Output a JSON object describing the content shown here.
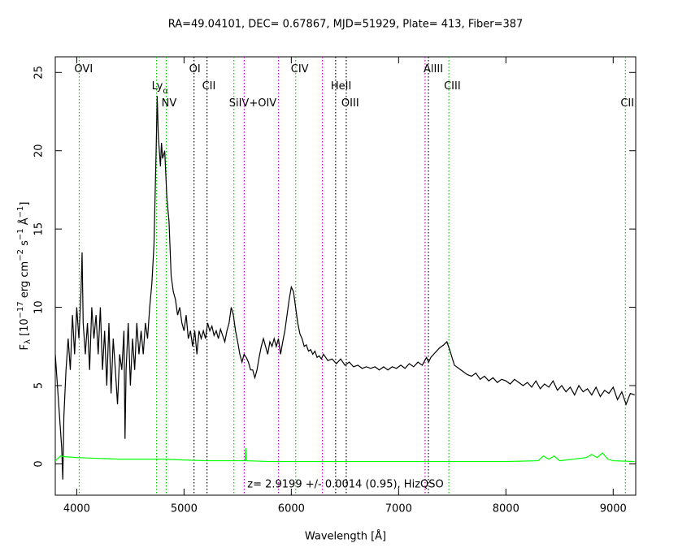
{
  "chart_data": {
    "type": "line",
    "title": "RA=49.04101, DEC= 0.67867, MJD=51929, Plate= 413, Fiber=387",
    "xlabel": "Wavelength [Å]",
    "ylabel": [
      [
        "F",
        "base"
      ],
      [
        "λ",
        "sub"
      ],
      [
        " [10",
        "base"
      ],
      [
        "−17",
        "sup"
      ],
      [
        " erg cm",
        "base"
      ],
      [
        "−2",
        "sup"
      ],
      [
        " s",
        "base"
      ],
      [
        "−1",
        "sup"
      ],
      [
        " Å",
        "base"
      ],
      [
        "−1",
        "sup"
      ],
      [
        "]",
        "base"
      ]
    ],
    "annotation": "z= 2.9199 +/- 0.0014 (0.95), HizQSO",
    "xlim": [
      3800,
      9210
    ],
    "ylim": [
      -2,
      26
    ],
    "xticks": [
      4000,
      5000,
      6000,
      7000,
      8000,
      9000
    ],
    "yticks": [
      0,
      5,
      10,
      15,
      20,
      25
    ],
    "series": [
      {
        "color": "#000000",
        "x": [
          3800,
          3820,
          3840,
          3860,
          3870,
          3880,
          3900,
          3920,
          3940,
          3960,
          3980,
          4000,
          4020,
          4040,
          4050,
          4060,
          4080,
          4100,
          4120,
          4140,
          4160,
          4180,
          4200,
          4220,
          4240,
          4260,
          4280,
          4300,
          4320,
          4340,
          4360,
          4380,
          4400,
          4420,
          4440,
          4450,
          4460,
          4480,
          4500,
          4520,
          4540,
          4560,
          4580,
          4600,
          4620,
          4640,
          4660,
          4680,
          4700,
          4720,
          4740,
          4750,
          4760,
          4780,
          4790,
          4800,
          4820,
          4840,
          4860,
          4880,
          4900,
          4920,
          4940,
          4960,
          4980,
          5000,
          5020,
          5040,
          5060,
          5080,
          5100,
          5120,
          5140,
          5160,
          5180,
          5200,
          5220,
          5240,
          5260,
          5280,
          5300,
          5320,
          5340,
          5360,
          5380,
          5400,
          5420,
          5440,
          5460,
          5480,
          5500,
          5520,
          5540,
          5560,
          5580,
          5600,
          5620,
          5640,
          5660,
          5680,
          5700,
          5720,
          5740,
          5760,
          5780,
          5800,
          5820,
          5840,
          5860,
          5880,
          5900,
          5920,
          5940,
          5960,
          5980,
          6000,
          6020,
          6040,
          6060,
          6080,
          6100,
          6120,
          6140,
          6160,
          6180,
          6200,
          6220,
          6240,
          6260,
          6280,
          6300,
          6340,
          6380,
          6420,
          6460,
          6500,
          6540,
          6580,
          6620,
          6660,
          6700,
          6740,
          6780,
          6820,
          6860,
          6900,
          6940,
          6980,
          7020,
          7060,
          7100,
          7140,
          7180,
          7220,
          7260,
          7280,
          7300,
          7340,
          7380,
          7420,
          7450,
          7480,
          7520,
          7560,
          7600,
          7640,
          7680,
          7720,
          7760,
          7800,
          7840,
          7880,
          7920,
          7960,
          8000,
          8040,
          8080,
          8120,
          8160,
          8200,
          8240,
          8280,
          8320,
          8360,
          8400,
          8440,
          8480,
          8520,
          8560,
          8600,
          8640,
          8680,
          8720,
          8760,
          8800,
          8840,
          8880,
          8920,
          8960,
          9000,
          9040,
          9080,
          9120,
          9160,
          9200
        ],
        "values": [
          7,
          5,
          3,
          1,
          -1,
          3,
          6,
          8,
          6,
          9.5,
          7,
          10,
          8,
          11,
          13.5,
          9,
          7,
          9,
          6,
          10,
          8,
          9.5,
          7,
          10,
          6,
          8.5,
          5,
          9,
          4.5,
          8,
          6,
          3.8,
          7,
          6,
          8.5,
          1.6,
          6,
          9,
          5,
          8,
          6,
          9,
          7,
          8.5,
          7,
          9,
          8,
          10,
          11.5,
          14,
          20,
          23.5,
          21,
          19,
          20.5,
          19.5,
          20,
          17,
          15.5,
          12,
          11,
          10.5,
          9.5,
          10,
          9,
          8.5,
          9.5,
          8,
          8.5,
          7.5,
          8.5,
          7,
          8.5,
          8,
          8.5,
          8,
          9,
          8.5,
          8.8,
          8.2,
          8.5,
          8,
          8.6,
          8.2,
          7.8,
          8.5,
          9,
          10,
          9.5,
          8.5,
          7.8,
          7,
          6.5,
          7,
          6.8,
          6.5,
          6,
          6,
          5.5,
          6,
          6.8,
          7.5,
          8,
          7.5,
          7,
          7.8,
          7.5,
          8,
          7.5,
          8,
          7,
          7.8,
          8.5,
          9.5,
          10.5,
          11.3,
          11,
          10,
          9,
          8.3,
          8,
          7.5,
          7.6,
          7.2,
          7.3,
          7,
          7.2,
          6.8,
          6.9,
          6.7,
          7,
          6.6,
          6.7,
          6.4,
          6.7,
          6.3,
          6.5,
          6.2,
          6.3,
          6.1,
          6.2,
          6.1,
          6.2,
          6,
          6.2,
          6,
          6.2,
          6.1,
          6.3,
          6.1,
          6.4,
          6.2,
          6.5,
          6.3,
          6.8,
          6.5,
          6.8,
          7.1,
          7.4,
          7.6,
          7.8,
          7.2,
          6.3,
          6.1,
          5.9,
          5.7,
          5.6,
          5.8,
          5.4,
          5.6,
          5.3,
          5.5,
          5.2,
          5.4,
          5.3,
          5.1,
          5.4,
          5.2,
          5,
          5.2,
          4.9,
          5.3,
          4.8,
          5.1,
          4.9,
          5.3,
          4.7,
          5,
          4.6,
          4.9,
          4.4,
          5,
          4.6,
          4.8,
          4.4,
          4.9,
          4.3,
          4.7,
          4.5,
          4.9,
          4.1,
          4.6,
          3.8,
          4.5,
          4.4
        ]
      },
      {
        "color": "#00ff00",
        "x": [
          3800,
          3850,
          3900,
          4000,
          4200,
          4400,
          4600,
          4800,
          5000,
          5200,
          5400,
          5570,
          5575,
          5580,
          5800,
          6000,
          6500,
          7000,
          7500,
          8000,
          8300,
          8350,
          8400,
          8450,
          8500,
          8750,
          8800,
          8850,
          8900,
          8950,
          9000,
          9200
        ],
        "values": [
          0.2,
          0.5,
          0.45,
          0.4,
          0.35,
          0.3,
          0.3,
          0.3,
          0.25,
          0.2,
          0.2,
          0.2,
          1.0,
          0.2,
          0.15,
          0.15,
          0.15,
          0.15,
          0.15,
          0.15,
          0.2,
          0.5,
          0.3,
          0.5,
          0.2,
          0.4,
          0.6,
          0.4,
          0.7,
          0.3,
          0.2,
          0.15
        ]
      }
    ],
    "lines": [
      {
        "x": 4023,
        "color": "#00cc00",
        "label": "OVI"
      },
      {
        "x": 4744,
        "color": "#00cc00",
        "label": "Ly",
        "subscript": "α"
      },
      {
        "x": 4835,
        "color": "#00cc00",
        "label": "NV"
      },
      {
        "x": 5093,
        "color": "#000000",
        "label": "OI"
      },
      {
        "x": 5214,
        "color": "#000000",
        "label": "CII"
      },
      {
        "x": 5465,
        "color": "#00cc00",
        "label": "SiIV+OIV"
      },
      {
        "x": 5561,
        "color": "#cc00cc"
      },
      {
        "x": 5880,
        "color": "#cc00cc"
      },
      {
        "x": 6041,
        "color": "#00cc00",
        "label": "CIV"
      },
      {
        "x": 6290,
        "color": "#cc00cc"
      },
      {
        "x": 6413,
        "color": "#000000",
        "label": "HeII"
      },
      {
        "x": 6512,
        "color": "#000000",
        "label": "OIII"
      },
      {
        "x": 7247,
        "color": "#cc00cc"
      },
      {
        "x": 7278,
        "color": "#000000",
        "label": "AlIII"
      },
      {
        "x": 7468,
        "color": "#00cc00",
        "label": "CIII"
      },
      {
        "x": 9114,
        "color": "#00cc00",
        "label": "CII"
      }
    ]
  }
}
